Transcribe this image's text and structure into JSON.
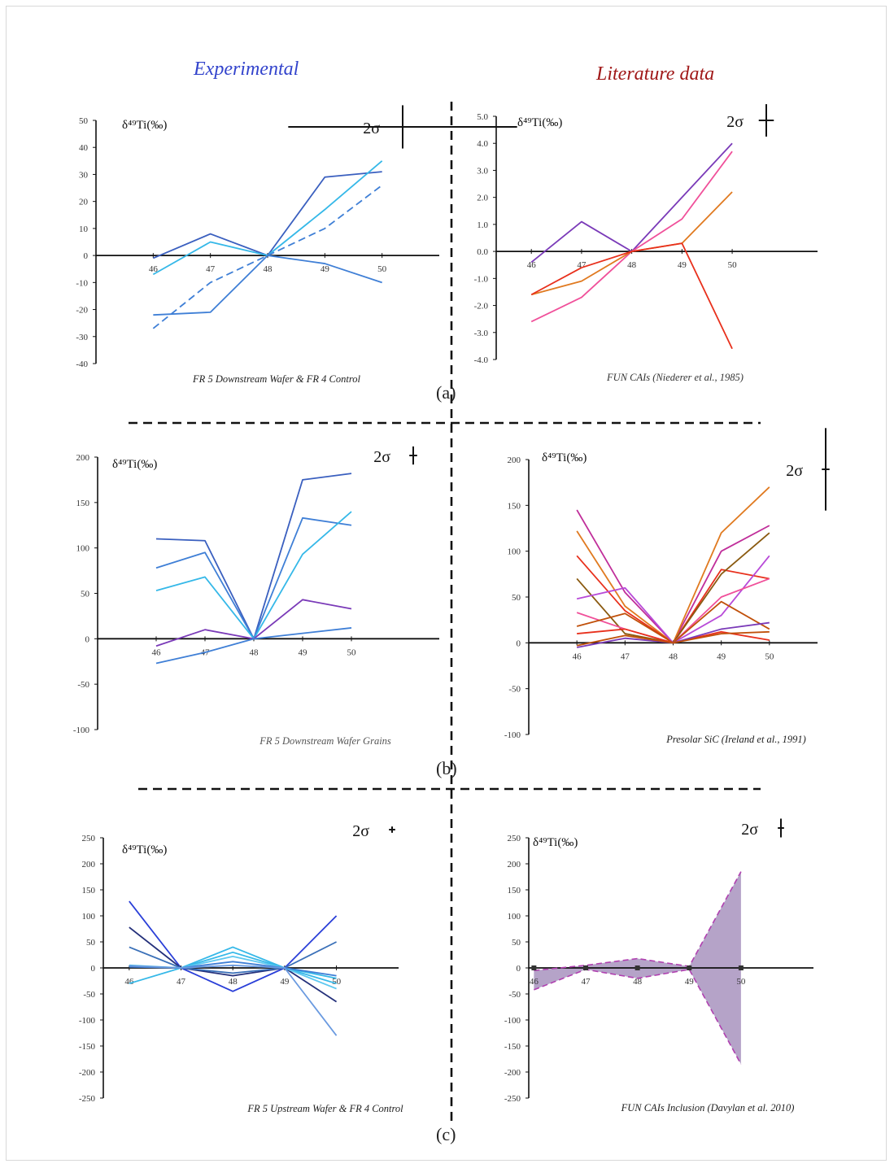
{
  "headers": {
    "experimental": "Experimental",
    "literature": "Literature data"
  },
  "panel_labels": [
    "(a)",
    "(b)",
    "(c)"
  ],
  "sigma_label": "2σ",
  "colors": {
    "blue_dark": "#3a5fbf",
    "blue": "#3f7fd6",
    "blue_light": "#35b8e8",
    "navy": "#24307a",
    "purple": "#7a3ab8",
    "magenta": "#c02e9a",
    "pink": "#f0509a",
    "red": "#e8301c",
    "orange": "#e07a20",
    "dark_orange": "#c0500a",
    "brown": "#8a5a10",
    "violet": "#b84ad8",
    "fill_purple": "#b5a3c8"
  },
  "chart_data": [
    {
      "id": "a-left",
      "type": "line",
      "ylabel": "δ⁴⁹Ti(‰)",
      "caption": "FR 5 Downstream Wafer & FR 4 Control",
      "x": [
        46,
        47,
        48,
        49,
        50
      ],
      "xlim": [
        45,
        51
      ],
      "ylim": [
        -40,
        50
      ],
      "yticks": [
        -40,
        -30,
        -20,
        -10,
        0,
        10,
        20,
        30,
        40,
        50
      ],
      "ytick_labels": [
        "-40",
        "-30",
        "-20",
        "-10",
        "0",
        "10",
        "20",
        "30",
        "40",
        "50"
      ],
      "xtick_labels": [
        "46",
        "47",
        "48",
        "49",
        "50"
      ],
      "sigma_size": [
        2,
        8
      ],
      "series": [
        {
          "values": [
            -1,
            8,
            0,
            29,
            31
          ],
          "color": "#3a5fbf",
          "dash": false
        },
        {
          "values": [
            -7,
            5,
            0,
            17,
            35
          ],
          "color": "#35b8e8",
          "dash": false
        },
        {
          "values": [
            -22,
            -21,
            0,
            -3,
            -10
          ],
          "color": "#3f7fd6",
          "dash": false
        },
        {
          "values": [
            -27,
            -10,
            0,
            10,
            26
          ],
          "color": "#3f7fd6",
          "dash": true
        }
      ]
    },
    {
      "id": "a-right",
      "type": "line",
      "ylabel": "δ⁴⁹Ti(‰)",
      "caption": "FUN CAIs (Niederer et al., 1985)",
      "x": [
        46,
        47,
        48,
        49,
        50
      ],
      "xlim": [
        45.3,
        51.7
      ],
      "ylim": [
        -4,
        5
      ],
      "yticks": [
        -4,
        -3,
        -2,
        -1,
        0,
        1,
        2,
        3,
        4,
        5
      ],
      "ytick_labels": [
        "-4.0",
        "-3.0",
        "-2.0",
        "-1.0",
        "0.0",
        "1.0",
        "2.0",
        "3.0",
        "4.0",
        "5.0"
      ],
      "xtick_labels": [
        "46",
        "47",
        "48",
        "49",
        "50"
      ],
      "sigma_size": [
        0.15,
        0.6
      ],
      "series": [
        {
          "values": [
            -0.4,
            1.1,
            0,
            2.0,
            4.0
          ],
          "color": "#7a3ab8",
          "dash": false
        },
        {
          "values": [
            -2.6,
            -1.7,
            0,
            1.2,
            3.7
          ],
          "color": "#f0509a",
          "dash": false
        },
        {
          "values": [
            -1.6,
            -1.1,
            0,
            0.3,
            2.2
          ],
          "color": "#e07a20",
          "dash": false
        },
        {
          "values": [
            -1.6,
            -0.6,
            0,
            0.3,
            -3.6
          ],
          "color": "#e8301c",
          "dash": false
        }
      ]
    },
    {
      "id": "b-left",
      "type": "line",
      "ylabel": "δ⁴⁹Ti(‰)",
      "caption": "FR 5 Downstream Wafer Grains",
      "x": [
        46,
        47,
        48,
        49,
        50
      ],
      "xlim": [
        44.8,
        51.8
      ],
      "ylim": [
        -100,
        200
      ],
      "yticks": [
        -100,
        -50,
        0,
        50,
        100,
        150,
        200
      ],
      "ytick_labels": [
        "-100",
        "-50",
        "0",
        "50",
        "100",
        "150",
        "200"
      ],
      "xtick_labels": [
        "46",
        "47",
        "48",
        "49",
        "50"
      ],
      "sigma_size": [
        0.08,
        10
      ],
      "series": [
        {
          "values": [
            110,
            108,
            0,
            175,
            182
          ],
          "color": "#3a5fbf",
          "dash": false
        },
        {
          "values": [
            78,
            95,
            0,
            133,
            125
          ],
          "color": "#3f7fd6",
          "dash": false
        },
        {
          "values": [
            53,
            68,
            0,
            93,
            140
          ],
          "color": "#35b8e8",
          "dash": false
        },
        {
          "values": [
            -8,
            10,
            0,
            43,
            33
          ],
          "color": "#7a3ab8",
          "dash": false
        },
        {
          "values": [
            -27,
            -15,
            0,
            6,
            12
          ],
          "color": "#3f7fd6",
          "dash": false
        }
      ]
    },
    {
      "id": "b-right",
      "type": "line",
      "ylabel": "δ⁴⁹Ti(‰)",
      "caption": "Presolar SiC (Ireland et al., 1991)",
      "x": [
        46,
        47,
        48,
        49,
        50
      ],
      "xlim": [
        45,
        51
      ],
      "ylim": [
        -100,
        200
      ],
      "yticks": [
        -100,
        -50,
        0,
        50,
        100,
        150,
        200
      ],
      "ytick_labels": [
        "-100",
        "-50",
        "0",
        "50",
        "100",
        "150",
        "200"
      ],
      "xtick_labels": [
        "46",
        "47",
        "48",
        "49",
        "50"
      ],
      "sigma_size": [
        0.08,
        45
      ],
      "series": [
        {
          "values": [
            145,
            55,
            0,
            100,
            128
          ],
          "color": "#c02e9a",
          "dash": false
        },
        {
          "values": [
            122,
            40,
            0,
            120,
            170
          ],
          "color": "#e07a20",
          "dash": false
        },
        {
          "values": [
            95,
            35,
            0,
            80,
            70
          ],
          "color": "#e8301c",
          "dash": false
        },
        {
          "values": [
            70,
            10,
            0,
            75,
            120
          ],
          "color": "#8a5a10",
          "dash": false
        },
        {
          "values": [
            48,
            60,
            0,
            30,
            95
          ],
          "color": "#b84ad8",
          "dash": false
        },
        {
          "values": [
            33,
            15,
            0,
            50,
            70
          ],
          "color": "#f0509a",
          "dash": false
        },
        {
          "values": [
            18,
            32,
            0,
            45,
            15
          ],
          "color": "#c0500a",
          "dash": false
        },
        {
          "values": [
            10,
            15,
            0,
            12,
            3
          ],
          "color": "#e8301c",
          "dash": false
        },
        {
          "values": [
            -5,
            5,
            0,
            15,
            22
          ],
          "color": "#7a3ab8",
          "dash": false
        },
        {
          "values": [
            -3,
            8,
            0,
            10,
            12
          ],
          "color": "#c0500a",
          "dash": false
        }
      ]
    },
    {
      "id": "c-left",
      "type": "line",
      "ylabel": "δ⁴⁹Ti(‰)",
      "caption": "FR 5 Upstream Wafer & FR 4 Control",
      "x": [
        46,
        47,
        48,
        49,
        50
      ],
      "xlim": [
        45.5,
        51.2
      ],
      "ylim": [
        -250,
        250
      ],
      "yticks": [
        -250,
        -200,
        -150,
        -100,
        -50,
        0,
        50,
        100,
        150,
        200,
        250
      ],
      "ytick_labels": [
        "-250",
        "-200",
        "-150",
        "-100",
        "-50",
        "0",
        "50",
        "100",
        "150",
        "200",
        "250"
      ],
      "xtick_labels": [
        "46",
        "47",
        "48",
        "49",
        "50"
      ],
      "sigma_size": [
        0.06,
        6
      ],
      "series": [
        {
          "values": [
            128,
            0,
            -45,
            0,
            100
          ],
          "color": "#2a3fd8",
          "dash": false
        },
        {
          "values": [
            78,
            0,
            -15,
            0,
            -65
          ],
          "color": "#24307a",
          "dash": false
        },
        {
          "values": [
            40,
            0,
            -10,
            0,
            50
          ],
          "color": "#3a70b8",
          "dash": false
        },
        {
          "values": [
            -30,
            0,
            40,
            0,
            -20
          ],
          "color": "#35b8e8",
          "dash": false
        },
        {
          "values": [
            5,
            0,
            30,
            0,
            -30
          ],
          "color": "#35b8e8",
          "dash": false
        },
        {
          "values": [
            3,
            0,
            22,
            0,
            -40
          ],
          "color": "#5ec8f0",
          "dash": false
        },
        {
          "values": [
            2,
            0,
            12,
            0,
            -15
          ],
          "color": "#3f7fd6",
          "dash": false
        },
        {
          "values": [
            4,
            0,
            5,
            0,
            -130
          ],
          "color": "#6a9ae0",
          "dash": false
        }
      ]
    },
    {
      "id": "c-right",
      "type": "area",
      "ylabel": "δ⁴⁹Ti(‰)",
      "caption": "FUN CAIs Inclusion (Davylan et al. 2010)",
      "x": [
        46,
        47,
        48,
        49,
        50
      ],
      "xlim": [
        45.9,
        51.4
      ],
      "ylim": [
        -250,
        250
      ],
      "yticks": [
        -250,
        -200,
        -150,
        -100,
        -50,
        0,
        50,
        100,
        150,
        200,
        250
      ],
      "ytick_labels": [
        "-250",
        "-200",
        "-150",
        "-100",
        "-50",
        "0",
        "50",
        "100",
        "150",
        "200",
        "250"
      ],
      "xtick_labels": [
        "46",
        "47",
        "48",
        "49",
        "50"
      ],
      "sigma_size": [
        0.06,
        18
      ],
      "upper": [
        -5,
        5,
        18,
        3,
        185
      ],
      "lower": [
        -42,
        -3,
        -20,
        -3,
        -185
      ],
      "fill_color": "#b5a3c8",
      "edge_color": "#b040b0"
    }
  ]
}
